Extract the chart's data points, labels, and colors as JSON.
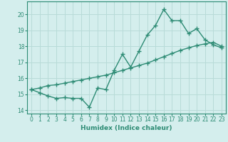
{
  "xlabel": "Humidex (Indice chaleur)",
  "line1_x": [
    0,
    1,
    2,
    3,
    4,
    5,
    6,
    7,
    8,
    9,
    10,
    11,
    12,
    13,
    14,
    15,
    16,
    17,
    18,
    19,
    20,
    21,
    22,
    23
  ],
  "line1_y": [
    15.3,
    15.1,
    14.9,
    14.75,
    14.8,
    14.75,
    14.75,
    14.2,
    15.4,
    15.3,
    16.5,
    17.5,
    16.7,
    17.7,
    18.7,
    19.3,
    20.3,
    19.6,
    19.6,
    18.8,
    19.1,
    18.4,
    18.1,
    17.9
  ],
  "line2_x": [
    0,
    1,
    2,
    3,
    4,
    5,
    6,
    7,
    8,
    9,
    10,
    11,
    12,
    13,
    14,
    15,
    16,
    17,
    18,
    19,
    20,
    21,
    22,
    23
  ],
  "line2_y": [
    15.3,
    15.4,
    15.55,
    15.6,
    15.7,
    15.8,
    15.9,
    16.0,
    16.1,
    16.2,
    16.35,
    16.5,
    16.65,
    16.8,
    16.95,
    17.15,
    17.35,
    17.55,
    17.75,
    17.9,
    18.05,
    18.15,
    18.25,
    18.0
  ],
  "line_color": "#2d8b74",
  "bg_color": "#d4eeed",
  "grid_color": "#b8dbd8",
  "ylim": [
    13.8,
    20.8
  ],
  "xlim": [
    -0.5,
    23.5
  ],
  "yticks": [
    14,
    15,
    16,
    17,
    18,
    19,
    20
  ],
  "xticks": [
    0,
    1,
    2,
    3,
    4,
    5,
    6,
    7,
    8,
    9,
    10,
    11,
    12,
    13,
    14,
    15,
    16,
    17,
    18,
    19,
    20,
    21,
    22,
    23
  ],
  "tick_fontsize": 5.5,
  "xlabel_fontsize": 6.5,
  "marker_size": 4,
  "linewidth": 1.0
}
